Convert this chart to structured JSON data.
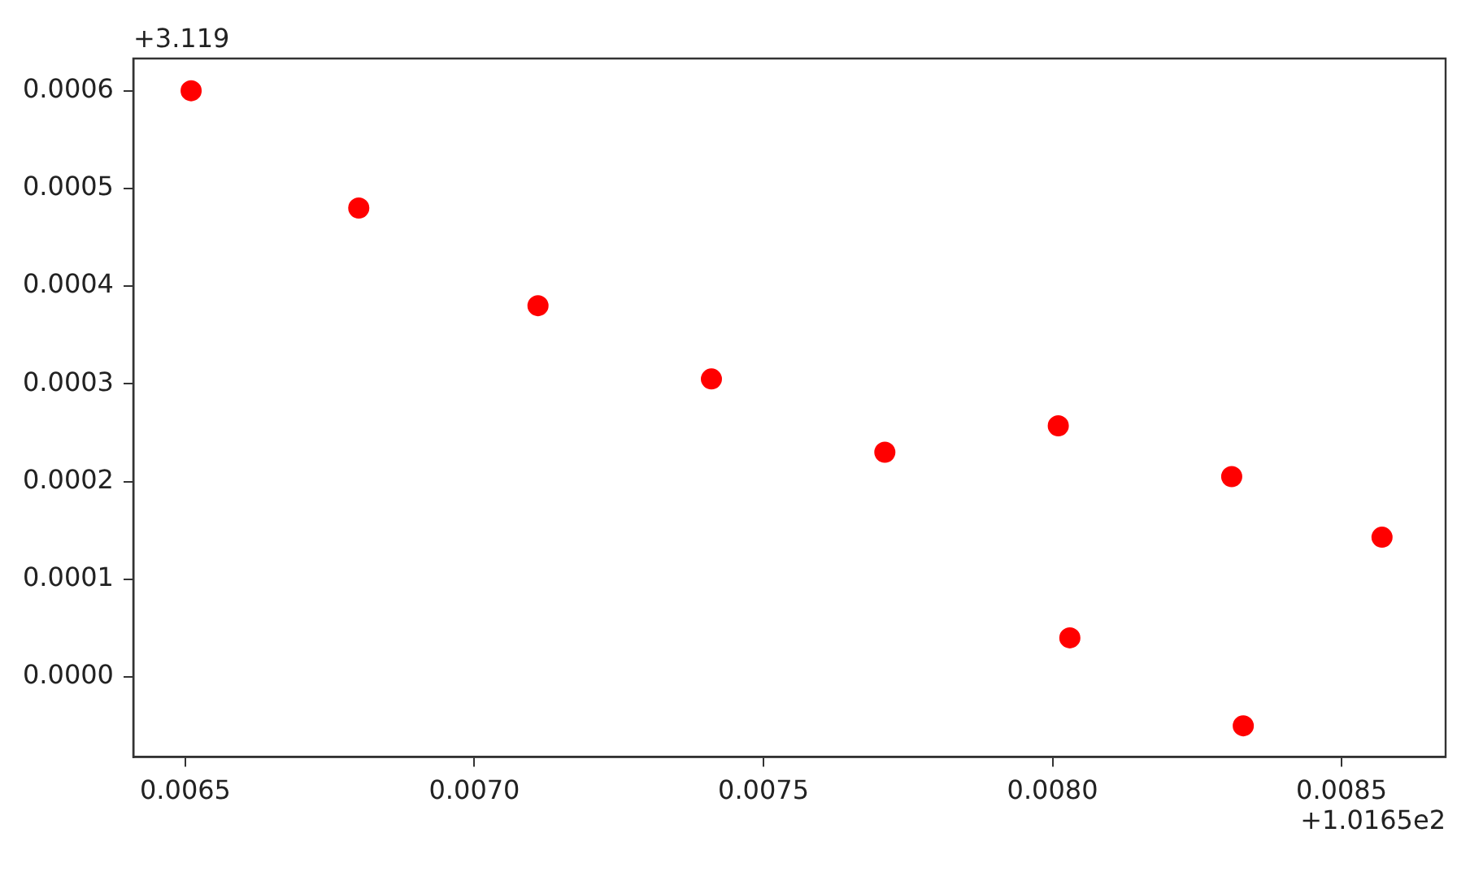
{
  "chart_data": {
    "type": "scatter",
    "x": [
      0.00651,
      0.0068,
      0.00711,
      0.00741,
      0.00771,
      0.00801,
      0.00831,
      0.00857,
      0.00803,
      0.00833
    ],
    "series": [
      {
        "color": "#ff0000",
        "values": [
          0.0006,
          0.00048,
          0.00038,
          0.000305,
          0.00023,
          0.000257,
          0.000205,
          0.000143,
          4e-05,
          -5e-05
        ]
      }
    ],
    "xlim": [
      0.00641,
      0.00868
    ],
    "xticks": [
      0.0065,
      {
        "value": 0.007,
        "label": "0.0070"
      },
      0.0075,
      {
        "value": 0.008,
        "label": "0.0080"
      },
      0.0085
    ],
    "ylim": [
      -8.2e-05,
      0.000633
    ],
    "yticks": [
      {
        "value": 0,
        "label": "0.0000"
      },
      0.0001,
      0.0002,
      0.0003,
      0.0004,
      0.0005,
      0.0006
    ],
    "annotations": [
      "+3.119",
      "+1.0165e2"
    ],
    "grid": false,
    "legend": false,
    "marker": "circle"
  }
}
